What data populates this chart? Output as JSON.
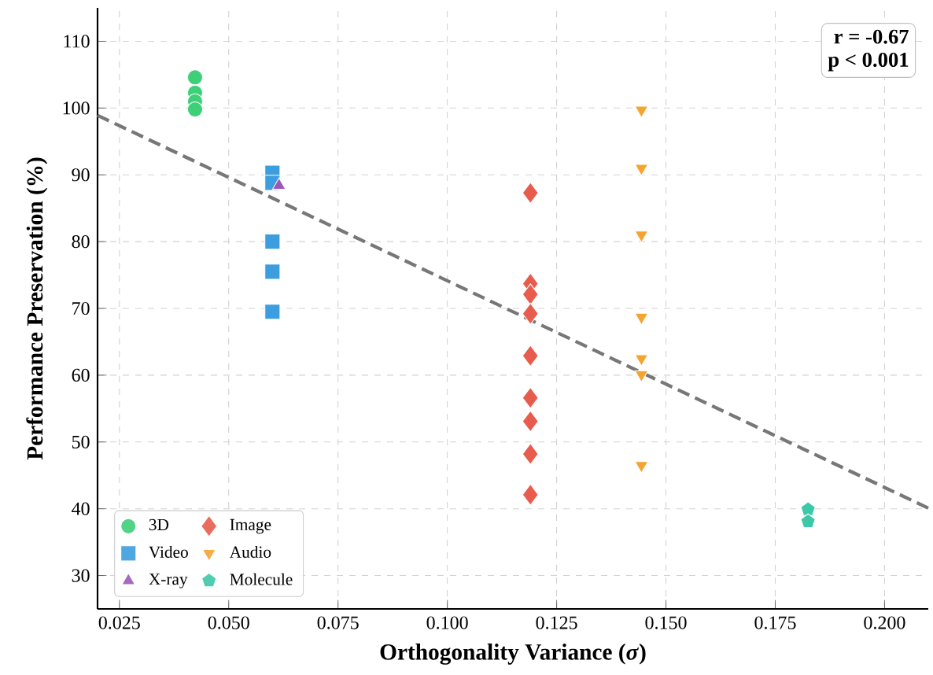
{
  "chart_data": {
    "type": "scatter",
    "xlabel": "Orthogonality Variance (*σ*)",
    "ylabel": "Performance Preservation (%)",
    "xlim": [
      0.02,
      0.21
    ],
    "ylim": [
      25,
      115
    ],
    "xticks": [
      {
        "value": 0.025,
        "label": "0.025"
      },
      {
        "value": 0.05,
        "label": "0.050"
      },
      {
        "value": 0.075,
        "label": "0.075"
      },
      {
        "value": 0.1,
        "label": "0.100"
      },
      {
        "value": 0.125,
        "label": "0.125"
      },
      {
        "value": 0.15,
        "label": "0.150"
      },
      {
        "value": 0.175,
        "label": "0.175"
      },
      {
        "value": 0.2,
        "label": "0.200"
      }
    ],
    "yticks": [
      30,
      40,
      50,
      60,
      70,
      80,
      90,
      100,
      110
    ],
    "grid": true,
    "legend": "bottom left",
    "annotations": [
      "r = -0.67",
      "p < 0.001"
    ],
    "series": [
      {
        "name": "3D",
        "color": "#3ecf79",
        "marker": "circle",
        "x": [
          0.0423,
          0.0423,
          0.0423,
          0.0423
        ],
        "values": [
          104.6,
          102.3,
          101,
          99.8
        ]
      },
      {
        "name": "Video",
        "color": "#3c9ddf",
        "marker": "square",
        "x": [
          0.06,
          0.06,
          0.06,
          0.06,
          0.06
        ],
        "values": [
          90.3,
          88.8,
          80,
          75.5,
          69.5
        ]
      },
      {
        "name": "X-ray",
        "color": "#9b59b6",
        "marker": "triangle",
        "x": [
          0.0615
        ],
        "values": [
          88.4
        ]
      },
      {
        "name": "Image",
        "color": "#e85c4e",
        "marker": "diamond",
        "x": [
          0.119,
          0.119,
          0.119,
          0.119,
          0.119,
          0.119,
          0.119,
          0.119,
          0.119
        ],
        "values": [
          87.3,
          73.7,
          72.1,
          69.2,
          62.9,
          56.6,
          53.1,
          48.2,
          42.1
        ]
      },
      {
        "name": "Audio",
        "color": "#f5a431",
        "marker": "triangle_down",
        "x": [
          0.1444,
          0.1444,
          0.1444,
          0.1444,
          0.1444,
          0.1444,
          0.1444
        ],
        "values": [
          99.7,
          91,
          81,
          68.7,
          62.5,
          60.1,
          46.5
        ]
      },
      {
        "name": "Molecule",
        "color": "#3dc8a8",
        "x": [
          0.1825,
          0.1825
        ],
        "values": [
          39.9,
          38.1
        ]
      },
      {
        "type": "line",
        "color": "#777777",
        "line_style": "dashed",
        "marker": "none",
        "x": [
          0.02,
          0.21
        ],
        "values": [
          98.9,
          40.1
        ]
      }
    ]
  }
}
